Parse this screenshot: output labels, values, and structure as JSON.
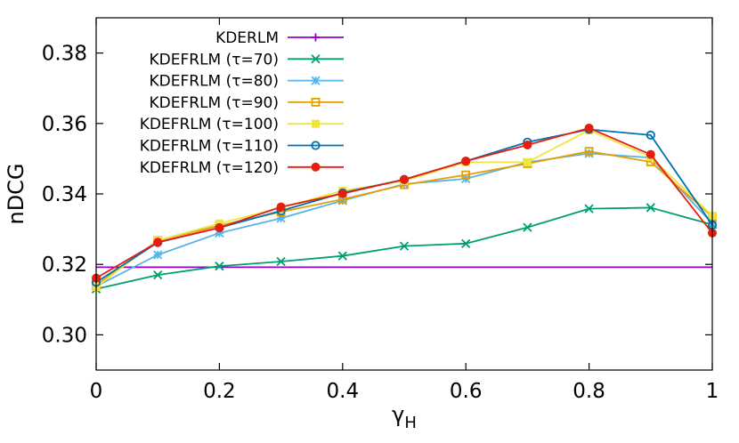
{
  "chart_data": {
    "type": "line",
    "title": "",
    "xlabel": "γ",
    "xlabel_sub": "H",
    "ylabel": "nDCG",
    "xlim": [
      0,
      1
    ],
    "ylim": [
      0.29,
      0.39
    ],
    "xticks": [
      0,
      0.2,
      0.4,
      0.6,
      0.8,
      1
    ],
    "xtick_labels": [
      "0",
      "0.2",
      "0.4",
      "0.6",
      "0.8",
      "1"
    ],
    "yticks": [
      0.3,
      0.32,
      0.34,
      0.36,
      0.38
    ],
    "ytick_labels": [
      "0.30",
      "0.32",
      "0.34",
      "0.36",
      "0.38"
    ],
    "grid": false,
    "legend_position": "top-left",
    "x": [
      0,
      0.1,
      0.2,
      0.3,
      0.4,
      0.5,
      0.6,
      0.7,
      0.8,
      0.9,
      1.0
    ],
    "series": [
      {
        "name": "KDERLM",
        "color": "#9400d3",
        "marker": "plus",
        "values": [
          0.3192,
          0.3192,
          0.3192,
          0.3192,
          0.3192,
          0.3192,
          0.3192,
          0.3192,
          0.3192,
          0.3192,
          0.3192
        ]
      },
      {
        "name": "KDEFRLM (τ=70)",
        "color": "#009e73",
        "marker": "x",
        "values": [
          0.313,
          0.317,
          0.3195,
          0.3208,
          0.3224,
          0.3252,
          0.3259,
          0.3305,
          0.3358,
          0.3361,
          0.3313
        ]
      },
      {
        "name": "KDEFRLM (τ=80)",
        "color": "#56b4e9",
        "marker": "star",
        "values": [
          0.3138,
          0.3227,
          0.3289,
          0.3331,
          0.3381,
          0.3428,
          0.3443,
          0.349,
          0.3515,
          0.3503,
          0.3316
        ]
      },
      {
        "name": "KDEFRLM (τ=90)",
        "color": "#e69f00",
        "marker": "open-square",
        "values": [
          0.3141,
          0.3268,
          0.331,
          0.3349,
          0.3385,
          0.3426,
          0.3454,
          0.3486,
          0.3521,
          0.3491,
          0.3335
        ]
      },
      {
        "name": "KDEFRLM (τ=100)",
        "color": "#f0e442",
        "marker": "filled-square",
        "values": [
          0.3136,
          0.3268,
          0.3316,
          0.3361,
          0.3409,
          0.3437,
          0.349,
          0.349,
          0.3581,
          0.3505,
          0.3338
        ]
      },
      {
        "name": "KDEFRLM (τ=110)",
        "color": "#0072b2",
        "marker": "open-circle",
        "values": [
          0.3149,
          0.3262,
          0.3304,
          0.3352,
          0.3403,
          0.3441,
          0.3493,
          0.3547,
          0.3583,
          0.3567,
          0.3312
        ]
      },
      {
        "name": "KDEFRLM (τ=120)",
        "color": "#e51e10",
        "marker": "filled-circle",
        "values": [
          0.3161,
          0.3263,
          0.3304,
          0.3363,
          0.3401,
          0.3441,
          0.3493,
          0.3539,
          0.3587,
          0.3512,
          0.3289
        ]
      }
    ]
  }
}
